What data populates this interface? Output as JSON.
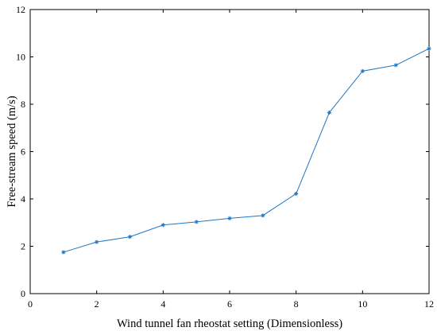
{
  "chart_data": {
    "type": "line",
    "xlabel": "Wind tunnel fan rheostat setting (Dimensionless)",
    "ylabel": "Free-stream speed (m/s)",
    "xlim": [
      0,
      12
    ],
    "ylim": [
      0,
      12
    ],
    "xticks": [
      0,
      2,
      4,
      6,
      8,
      10,
      12
    ],
    "yticks": [
      0,
      2,
      4,
      6,
      8,
      10,
      12
    ],
    "grid": false,
    "marker": "asterisk",
    "series": [
      {
        "color": "#1f77c4",
        "x": [
          1,
          2,
          3,
          4,
          5,
          6,
          7,
          8,
          9,
          10,
          11,
          12
        ],
        "y": [
          1.75,
          2.18,
          2.4,
          2.9,
          3.03,
          3.18,
          3.3,
          4.22,
          7.65,
          9.4,
          9.65,
          10.35
        ]
      }
    ]
  }
}
